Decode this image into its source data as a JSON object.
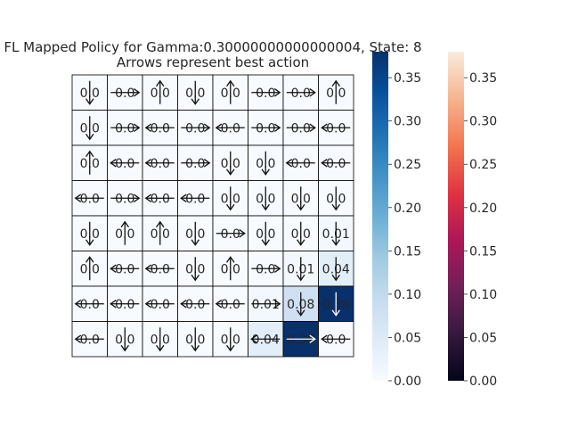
{
  "chart_data": {
    "type": "heatmap",
    "title": "FL Mapped Policy for Gamma:0.30000000000000004, State: 8",
    "subtitle": "Arrows represent best action",
    "rows": 8,
    "cols": 8,
    "values": [
      [
        0.0,
        0.0,
        0.0,
        0.0,
        0.0,
        0.0,
        0.0,
        0.0
      ],
      [
        0.0,
        0.0,
        0.0,
        0.0,
        0.0,
        0.0,
        0.0,
        0.0
      ],
      [
        0.0,
        0.0,
        0.0,
        0.0,
        0.0,
        0.0,
        0.0,
        0.0
      ],
      [
        0.0,
        0.0,
        0.0,
        0.0,
        0.0,
        0.0,
        0.0,
        0.0
      ],
      [
        0.0,
        0.0,
        0.0,
        0.0,
        0.0,
        0.0,
        0.0,
        0.01
      ],
      [
        0.0,
        0.0,
        0.0,
        0.0,
        0.0,
        0.0,
        0.01,
        0.04
      ],
      [
        0.0,
        0.0,
        0.0,
        0.0,
        0.0,
        0.01,
        0.08,
        0.38
      ],
      [
        0.0,
        0.0,
        0.0,
        0.0,
        0.0,
        0.04,
        0.38,
        0.0
      ]
    ],
    "labels": [
      [
        "0.0",
        "0.0",
        "0.0",
        "0.0",
        "0.0",
        "0.0",
        "0.0",
        "0.0"
      ],
      [
        "0.0",
        "0.0",
        "0.0",
        "0.0",
        "0.0",
        "0.0",
        "0.0",
        "0.0"
      ],
      [
        "0.0",
        "0.0",
        "0.0",
        "0.0",
        "0.0",
        "0.0",
        "0.0",
        "0.0"
      ],
      [
        "0.0",
        "0.0",
        "0.0",
        "0.0",
        "0.0",
        "0.0",
        "0.0",
        "0.0"
      ],
      [
        "0.0",
        "0.0",
        "0.0",
        "0.0",
        "0.0",
        "0.0",
        "0.0",
        "0.01"
      ],
      [
        "0.0",
        "0.0",
        "0.0",
        "0.0",
        "0.0",
        "0.0",
        "0.01",
        "0.04"
      ],
      [
        "0.0",
        "0.0",
        "0.0",
        "0.0",
        "0.0",
        "0.01",
        "0.08",
        "0.38"
      ],
      [
        "0.0",
        "0.0",
        "0.0",
        "0.0",
        "0.0",
        "0.04",
        "0.38",
        "0.0"
      ]
    ],
    "arrows": [
      [
        "down",
        "right",
        "up",
        "down",
        "up",
        "right",
        "right",
        "up"
      ],
      [
        "down",
        "right",
        "left",
        "right",
        "left",
        "right",
        "right",
        "left"
      ],
      [
        "up",
        "left",
        "left",
        "right",
        "down",
        "down",
        "left",
        "left"
      ],
      [
        "left",
        "right",
        "left",
        "left",
        "down",
        "down",
        "down",
        "down"
      ],
      [
        "down",
        "up",
        "up",
        "down",
        "right",
        "down",
        "down",
        "down"
      ],
      [
        "up",
        "left",
        "left",
        "down",
        "up",
        "right",
        "down",
        "down"
      ],
      [
        "left",
        "left",
        "left",
        "left",
        "left",
        "right",
        "down",
        "down"
      ],
      [
        "left",
        "down",
        "down",
        "down",
        "down",
        "left",
        "right",
        "left"
      ]
    ],
    "value_range": [
      0,
      0.38
    ],
    "colorbars": [
      {
        "name": "Blues",
        "ticks": [
          "0.00",
          "0.05",
          "0.10",
          "0.15",
          "0.20",
          "0.25",
          "0.30",
          "0.35"
        ],
        "colors": [
          "#f7fbff",
          "#deebf7",
          "#c6dbef",
          "#9ecae1",
          "#6baed6",
          "#4292c6",
          "#2171b5",
          "#08519c",
          "#08306b"
        ]
      },
      {
        "name": "rocket",
        "ticks": [
          "0.00",
          "0.05",
          "0.10",
          "0.15",
          "0.20",
          "0.25",
          "0.30",
          "0.35"
        ],
        "colors": [
          "#03051a",
          "#35193e",
          "#701f57",
          "#ad1759",
          "#e13342",
          "#f37651",
          "#f6b48f",
          "#faebdd"
        ]
      }
    ],
    "grid": true
  }
}
